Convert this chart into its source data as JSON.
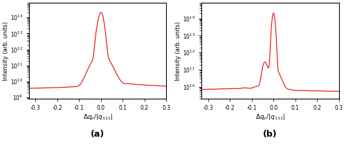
{
  "line_color": "#EE1111",
  "line_width": 0.85,
  "xlabel": "$\\Delta q_z/|q_{111}|$",
  "ylabel": "Intensity (arb. units)",
  "xlim_a": [
    -0.33,
    0.3
  ],
  "xlim_b": [
    -0.33,
    0.3
  ],
  "ylim_a": [
    800000000.0,
    800000000000000.0
  ],
  "ylim_b": [
    2000000000.0,
    800000000000000.0
  ],
  "xticks": [
    -0.3,
    -0.2,
    -0.1,
    0.0,
    0.1,
    0.2,
    0.3
  ],
  "xtick_labels": [
    "-0.3",
    "-0.2",
    "-0.1",
    "0.0",
    "0.1",
    "0.2",
    "0.3"
  ],
  "label_a": "(a)",
  "label_b": "(b)",
  "figsize": [
    5.0,
    2.13
  ],
  "dpi": 100
}
